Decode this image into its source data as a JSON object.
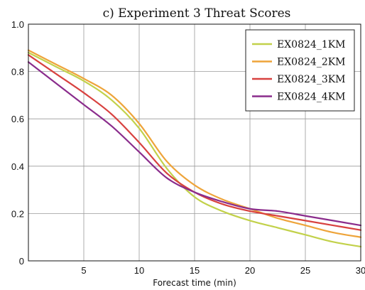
{
  "chart_data": {
    "type": "line",
    "title": "c) Experiment 3 Threat Scores",
    "xlabel": "Forecast time (min)",
    "ylabel": "",
    "xlim": [
      0,
      30
    ],
    "ylim": [
      0,
      1.0
    ],
    "xticks": [
      5,
      10,
      15,
      20,
      25,
      30
    ],
    "yticks": [
      0,
      0.2,
      0.4,
      0.6,
      0.8,
      1.0
    ],
    "xtick_labels": [
      "5",
      "10",
      "15",
      "20",
      "25",
      "30"
    ],
    "ytick_labels": [
      "0",
      "0.2",
      "0.4",
      "0.6",
      "0.8",
      "1.0"
    ],
    "grid": true,
    "legend_position": "top-right",
    "x": [
      0,
      2.5,
      5,
      7.5,
      10,
      12.5,
      15,
      17.5,
      20,
      22.5,
      25,
      27.5,
      30
    ],
    "series": [
      {
        "name": "EX0824_1KM",
        "color": "#c2d14a",
        "values": [
          0.88,
          0.82,
          0.76,
          0.68,
          0.56,
          0.39,
          0.27,
          0.21,
          0.17,
          0.14,
          0.11,
          0.08,
          0.06
        ]
      },
      {
        "name": "EX0824_2KM",
        "color": "#eea43a",
        "values": [
          0.89,
          0.83,
          0.77,
          0.7,
          0.58,
          0.42,
          0.32,
          0.26,
          0.22,
          0.18,
          0.15,
          0.12,
          0.1
        ]
      },
      {
        "name": "EX0824_3KM",
        "color": "#d8413f",
        "values": [
          0.87,
          0.79,
          0.71,
          0.62,
          0.5,
          0.37,
          0.29,
          0.24,
          0.21,
          0.19,
          0.17,
          0.15,
          0.13
        ]
      },
      {
        "name": "EX0824_4KM",
        "color": "#8a2c8c",
        "values": [
          0.84,
          0.75,
          0.66,
          0.57,
          0.46,
          0.35,
          0.29,
          0.25,
          0.22,
          0.21,
          0.19,
          0.17,
          0.15
        ]
      }
    ]
  }
}
